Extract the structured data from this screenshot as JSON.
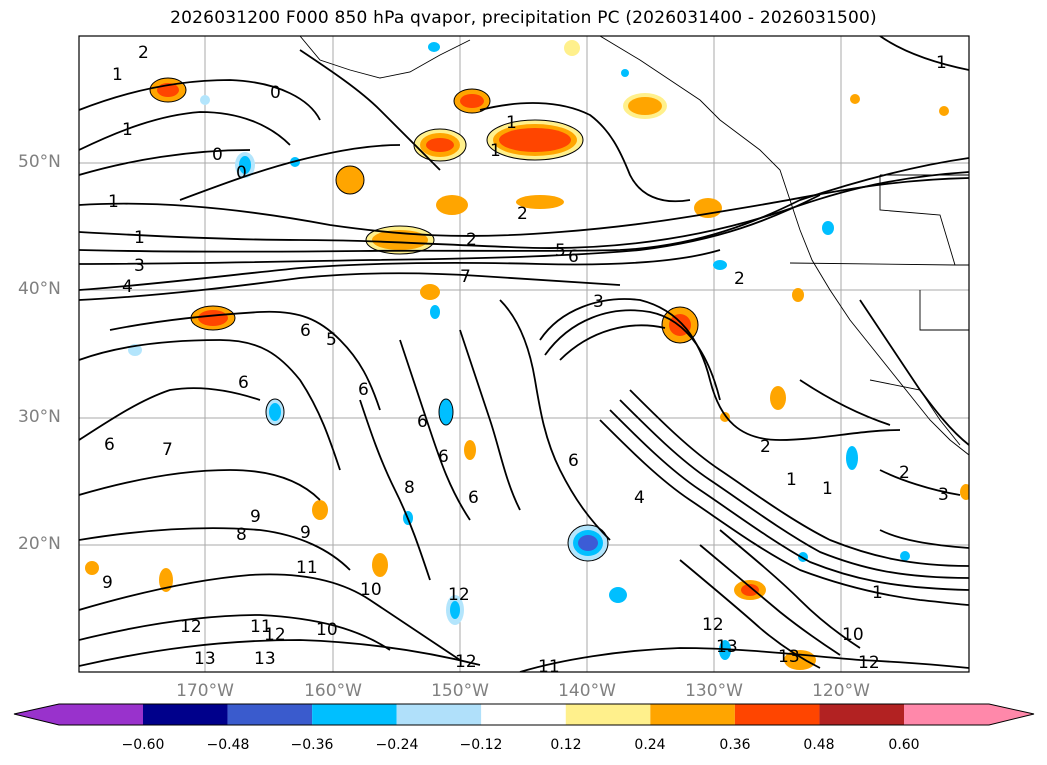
{
  "title": "2026031200 F000 850 hPa qvapor, precipitation PC (2026031400 - 2026031500)",
  "map": {
    "lat_labels": [
      "50°N",
      "40°N",
      "30°N",
      "20°N"
    ],
    "lon_labels": [
      "170°W",
      "160°W",
      "150°W",
      "140°W",
      "130°W",
      "120°W"
    ],
    "grid_color": "#aaaaaa",
    "region": "North Pacific / western North America"
  },
  "contour_labels": [
    "2",
    "1",
    "0",
    "1",
    "1",
    "1",
    "0",
    "0",
    "1",
    "2",
    "1",
    "2",
    "3",
    "4",
    "5",
    "6",
    "7",
    "2",
    "3",
    "6",
    "5",
    "6",
    "6",
    "7",
    "6",
    "6",
    "6",
    "6",
    "6",
    "4",
    "2",
    "1",
    "1",
    "2",
    "3",
    "8",
    "8",
    "9",
    "9",
    "9",
    "11",
    "12",
    "12",
    "13",
    "10",
    "11",
    "12",
    "12",
    "13",
    "10",
    "11",
    "13",
    "13",
    "12",
    "10",
    "12",
    "1",
    "1"
  ],
  "shaded_colors": {
    "positive": [
      "#fff08c",
      "#ffa500",
      "#ff4500"
    ],
    "negative": [
      "#b3e5fc",
      "#00bfff",
      "#3c5cd6"
    ]
  },
  "colorbar": {
    "ticks": [
      "−0.60",
      "−0.48",
      "−0.36",
      "−0.24",
      "−0.12",
      "0.12",
      "0.24",
      "0.36",
      "0.48",
      "0.60"
    ],
    "colors": [
      "#9932cc",
      "#00008b",
      "#3a5bcd",
      "#00bfff",
      "#b0e0fa",
      "#ffffff",
      "#fff08c",
      "#ffa500",
      "#ff4500",
      "#b22222",
      "#ff88aa"
    ]
  }
}
